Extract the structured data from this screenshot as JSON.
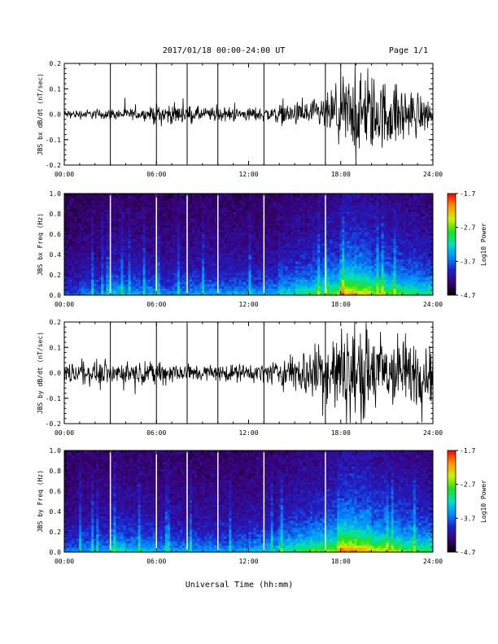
{
  "header": {
    "title": "2017/01/18   00:00-24:00 UT",
    "page": "Page 1/1"
  },
  "x_axis": {
    "label": "Universal Time (hh:mm)",
    "ticks": [
      "00:00",
      "06:00",
      "12:00",
      "18:00",
      "24:00"
    ]
  },
  "colorbar": {
    "label": "Log10 Power",
    "ticks": [
      "-1.7",
      "-2.7",
      "-3.7",
      "-4.7"
    ]
  },
  "chart_data": [
    {
      "type": "line",
      "title": "",
      "ylabel": "JBS bx dB/dt (nT/sec)",
      "xlabel": "",
      "x_range_hours": [
        0,
        24
      ],
      "ylim": [
        -0.2,
        0.2
      ],
      "yticks": [
        "0.2",
        "0.1",
        "0.0",
        "-0.1",
        "-0.2"
      ],
      "gap_markers_hours": [
        3.0,
        6.0,
        8.0,
        10.0,
        13.0,
        17.0
      ],
      "envelope": {
        "hours": [
          0,
          3,
          5.5,
          6,
          9,
          12,
          13,
          14,
          15,
          16,
          17,
          18,
          19,
          20,
          21,
          22,
          23,
          24
        ],
        "amplitude": [
          0.015,
          0.02,
          0.02,
          0.04,
          0.025,
          0.025,
          0.025,
          0.035,
          0.04,
          0.05,
          0.06,
          0.13,
          0.15,
          0.14,
          0.12,
          0.1,
          0.08,
          0.05
        ]
      },
      "grid": false
    },
    {
      "type": "heatmap",
      "title": "",
      "ylabel": "JBS bx Freq (Hz)",
      "xlabel": "",
      "x_range_hours": [
        0,
        24
      ],
      "ylim": [
        0.0,
        1.0
      ],
      "yticks": [
        "1.0",
        "0.8",
        "0.6",
        "0.4",
        "0.2",
        "0.0"
      ],
      "zlim": [
        -4.7,
        -1.7
      ],
      "gap_markers_hours": [
        3.0,
        6.0,
        8.0,
        10.0,
        13.0,
        17.0
      ],
      "activity_by_hour": [
        0.25,
        0.3,
        0.3,
        0.4,
        0.35,
        0.35,
        0.3,
        0.35,
        0.35,
        0.35,
        0.35,
        0.35,
        0.35,
        0.35,
        0.45,
        0.5,
        0.55,
        0.6,
        0.8,
        0.75,
        0.65,
        0.6,
        0.55,
        0.5
      ]
    },
    {
      "type": "line",
      "title": "",
      "ylabel": "JBS by dB/dt (nT/sec)",
      "xlabel": "",
      "x_range_hours": [
        0,
        24
      ],
      "ylim": [
        -0.2,
        0.2
      ],
      "yticks": [
        "0.2",
        "0.1",
        "0.0",
        "-0.1",
        "-0.2"
      ],
      "gap_markers_hours": [
        3.0,
        6.0,
        8.0,
        10.0,
        13.0,
        17.0
      ],
      "envelope": {
        "hours": [
          0,
          3,
          5.5,
          6,
          9,
          12,
          13,
          14,
          15,
          16,
          17,
          18,
          19,
          20,
          21,
          22,
          23,
          24
        ],
        "amplitude": [
          0.04,
          0.04,
          0.035,
          0.045,
          0.03,
          0.03,
          0.035,
          0.05,
          0.07,
          0.1,
          0.13,
          0.16,
          0.18,
          0.16,
          0.14,
          0.13,
          0.12,
          0.1
        ]
      },
      "grid": false
    },
    {
      "type": "heatmap",
      "title": "",
      "ylabel": "JBS by Freq (Hz)",
      "xlabel": "",
      "x_range_hours": [
        0,
        24
      ],
      "ylim": [
        0.0,
        1.0
      ],
      "yticks": [
        "1.0",
        "0.8",
        "0.6",
        "0.4",
        "0.2",
        "0.0"
      ],
      "zlim": [
        -4.7,
        -1.7
      ],
      "gap_markers_hours": [
        3.0,
        6.0,
        8.0,
        10.0,
        13.0,
        17.0
      ],
      "activity_by_hour": [
        0.3,
        0.35,
        0.35,
        0.45,
        0.4,
        0.4,
        0.35,
        0.35,
        0.35,
        0.35,
        0.35,
        0.35,
        0.4,
        0.4,
        0.5,
        0.55,
        0.6,
        0.65,
        0.85,
        0.8,
        0.7,
        0.65,
        0.6,
        0.55
      ]
    }
  ]
}
